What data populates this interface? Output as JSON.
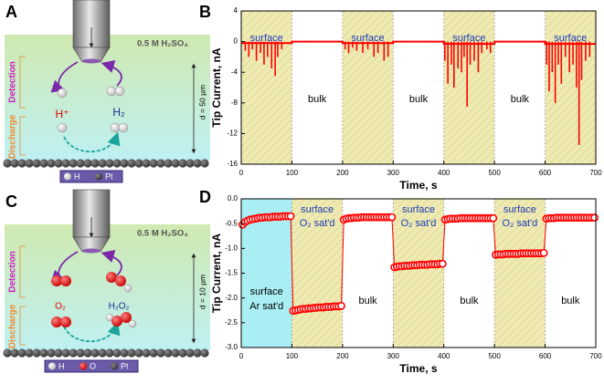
{
  "schematics": [
    {
      "label": "A",
      "solution": "0.5 M H₂SO₄",
      "zones": [
        "Detection",
        "Discharge"
      ],
      "species": [
        "H⁺",
        "H₂"
      ],
      "distance": "d = 50 µm",
      "legend": [
        "H",
        "Pt"
      ]
    },
    {
      "label": "C",
      "solution": "0.5 M H₂SO₄",
      "zones": [
        "Detection",
        "Discharge"
      ],
      "species": [
        "O₂",
        "H₂O₂"
      ],
      "distance": "d = 10 µm",
      "legend": [
        "H",
        "O",
        "Pt"
      ]
    }
  ],
  "chart_data": [
    {
      "type": "line",
      "label": "B",
      "xlabel": "Time, s",
      "ylabel": "Tip Current, nA",
      "xlim": [
        0,
        700
      ],
      "xticks": [
        0,
        100,
        200,
        300,
        400,
        500,
        600,
        700
      ],
      "ylim": [
        -16,
        4
      ],
      "yticks": [
        -16,
        -12,
        -8,
        -4,
        0,
        4
      ],
      "regions": [
        {
          "xlim": [
            0,
            100
          ],
          "fill": "#efeab2",
          "hatch": true,
          "labels": [
            "surface"
          ]
        },
        {
          "xlim": [
            100,
            200
          ],
          "labels": [
            "bulk"
          ]
        },
        {
          "xlim": [
            200,
            300
          ],
          "fill": "#efeab2",
          "hatch": true,
          "labels": [
            "surface"
          ]
        },
        {
          "xlim": [
            300,
            400
          ],
          "labels": [
            "bulk"
          ]
        },
        {
          "xlim": [
            400,
            500
          ],
          "fill": "#efeab2",
          "hatch": true,
          "labels": [
            "surface"
          ]
        },
        {
          "xlim": [
            500,
            600
          ],
          "labels": [
            "bulk"
          ]
        },
        {
          "xlim": [
            600,
            700
          ],
          "fill": "#efeab2",
          "hatch": true,
          "labels": [
            "surface"
          ]
        }
      ],
      "series": [
        {
          "style": "line",
          "color": "#ff0000",
          "x": [
            0,
            100,
            100,
            200,
            200,
            300,
            300,
            400,
            400,
            500,
            500,
            600,
            600,
            700
          ],
          "values": [
            -0.2,
            -0.2,
            0,
            0,
            -0.2,
            -0.2,
            0,
            0,
            -0.3,
            -0.3,
            0,
            0,
            -0.3,
            -0.3
          ]
        },
        {
          "style": "spike",
          "color": "#ff0000",
          "x": [
            8,
            15,
            22,
            30,
            38,
            45,
            52,
            60,
            67,
            72,
            80,
            205,
            212,
            220,
            228,
            240,
            250,
            262,
            270,
            282,
            290,
            402,
            408,
            415,
            420,
            428,
            435,
            440,
            446,
            452,
            460,
            468,
            475,
            485,
            492,
            603,
            608,
            614,
            620,
            626,
            632,
            640,
            648,
            655,
            662,
            667,
            672,
            680,
            688
          ],
          "values": [
            -1.2,
            -2,
            -1,
            -2.5,
            -1.5,
            -3,
            -2,
            -3.5,
            -4.5,
            -2,
            -1,
            -1,
            -1.5,
            -0.8,
            -1.2,
            -1.5,
            -1,
            -2,
            -1.5,
            -2.5,
            -2,
            -2.5,
            -5.5,
            -3,
            -6,
            -3.5,
            -4,
            -2,
            -8.5,
            -3,
            -2.5,
            -4,
            -1.5,
            -1,
            -1.5,
            -3,
            -6.5,
            -4,
            -8,
            -3,
            -5.5,
            -2,
            -4,
            -3,
            -6,
            -13.5,
            -5,
            -2.5,
            -2
          ]
        }
      ]
    },
    {
      "type": "line",
      "label": "D",
      "xlabel": "Time, s",
      "ylabel": "Tip Current, nA",
      "xlim": [
        0,
        700
      ],
      "xticks": [
        0,
        100,
        200,
        300,
        400,
        500,
        600,
        700
      ],
      "ylim": [
        -3,
        0
      ],
      "yticks": [
        {
          "value": -3,
          "label": "-3.0"
        },
        -2.5,
        {
          "value": -2,
          "label": "-2.0"
        },
        -1.5,
        {
          "value": -1,
          "label": "-1.0"
        },
        -0.5,
        {
          "value": 0,
          "label": "0.0"
        }
      ],
      "regions": [
        {
          "xlim": [
            0,
            100
          ],
          "fill": "#a8eef3",
          "labels": [
            "surface",
            "Ar sat'd"
          ]
        },
        {
          "xlim": [
            100,
            200
          ],
          "fill": "#efeab2",
          "hatch": true,
          "labels": [
            "surface",
            "O₂ sat'd"
          ]
        },
        {
          "xlim": [
            200,
            300
          ],
          "labels": [
            "bulk"
          ]
        },
        {
          "xlim": [
            300,
            400
          ],
          "fill": "#efeab2",
          "hatch": true,
          "labels": [
            "surface",
            "O₂ sat'd"
          ]
        },
        {
          "xlim": [
            400,
            500
          ],
          "labels": [
            "bulk"
          ]
        },
        {
          "xlim": [
            500,
            600
          ],
          "fill": "#efeab2",
          "hatch": true,
          "labels": [
            "surface",
            "O₂ sat'd"
          ]
        },
        {
          "xlim": [
            600,
            700
          ],
          "labels": [
            "bulk"
          ]
        }
      ],
      "series": [
        {
          "style": "marker",
          "color": "#ff0000",
          "x": [
            2.5,
            7.5,
            12.5,
            17.5,
            22.5,
            27.5,
            32.5,
            37.5,
            42.5,
            47.5,
            52.5,
            57.5,
            62.5,
            67.5,
            72.5,
            77.5,
            82.5,
            87.5,
            92.5,
            97.5,
            102.5,
            107.5,
            112.5,
            117.5,
            122.5,
            127.5,
            132.5,
            137.5,
            142.5,
            147.5,
            152.5,
            157.5,
            162.5,
            167.5,
            172.5,
            177.5,
            182.5,
            187.5,
            192.5,
            197.5,
            202.5,
            207.5,
            212.5,
            217.5,
            222.5,
            227.5,
            232.5,
            237.5,
            242.5,
            247.5,
            252.5,
            257.5,
            262.5,
            267.5,
            272.5,
            277.5,
            282.5,
            287.5,
            292.5,
            297.5,
            302.5,
            307.5,
            312.5,
            317.5,
            322.5,
            327.5,
            332.5,
            337.5,
            342.5,
            347.5,
            352.5,
            357.5,
            362.5,
            367.5,
            372.5,
            377.5,
            382.5,
            387.5,
            392.5,
            397.5,
            402.5,
            407.5,
            412.5,
            417.5,
            422.5,
            427.5,
            432.5,
            437.5,
            442.5,
            447.5,
            452.5,
            457.5,
            462.5,
            467.5,
            472.5,
            477.5,
            482.5,
            487.5,
            492.5,
            497.5,
            502.5,
            507.5,
            512.5,
            517.5,
            522.5,
            527.5,
            532.5,
            537.5,
            542.5,
            547.5,
            552.5,
            557.5,
            562.5,
            567.5,
            572.5,
            577.5,
            582.5,
            587.5,
            592.5,
            597.5,
            602.5,
            607.5,
            612.5,
            617.5,
            622.5,
            627.5,
            632.5,
            637.5,
            642.5,
            647.5,
            652.5,
            657.5,
            662.5,
            667.5,
            672.5,
            677.5,
            682.5,
            687.5,
            692.5,
            697.5
          ],
          "values": [
            -0.52,
            -0.47,
            -0.44,
            -0.42,
            -0.41,
            -0.4,
            -0.39,
            -0.38,
            -0.38,
            -0.37,
            -0.37,
            -0.37,
            -0.36,
            -0.36,
            -0.36,
            -0.36,
            -0.35,
            -0.35,
            -0.35,
            -0.35,
            -2.26,
            -2.25,
            -2.24,
            -2.23,
            -2.22,
            -2.22,
            -2.21,
            -2.21,
            -2.2,
            -2.2,
            -2.19,
            -2.19,
            -2.19,
            -2.18,
            -2.18,
            -2.18,
            -2.17,
            -2.17,
            -2.17,
            -2.16,
            -0.42,
            -0.4,
            -0.39,
            -0.39,
            -0.38,
            -0.38,
            -0.38,
            -0.37,
            -0.37,
            -0.37,
            -0.37,
            -0.37,
            -0.37,
            -0.37,
            -0.37,
            -0.37,
            -0.37,
            -0.37,
            -0.37,
            -0.37,
            -1.38,
            -1.37,
            -1.36,
            -1.36,
            -1.35,
            -1.35,
            -1.35,
            -1.34,
            -1.34,
            -1.34,
            -1.33,
            -1.33,
            -1.33,
            -1.33,
            -1.32,
            -1.32,
            -1.32,
            -1.32,
            -1.31,
            -1.31,
            -0.42,
            -0.41,
            -0.4,
            -0.4,
            -0.4,
            -0.4,
            -0.39,
            -0.39,
            -0.39,
            -0.39,
            -0.39,
            -0.39,
            -0.39,
            -0.39,
            -0.39,
            -0.39,
            -0.39,
            -0.39,
            -0.39,
            -0.39,
            -1.13,
            -1.12,
            -1.12,
            -1.12,
            -1.11,
            -1.11,
            -1.11,
            -1.11,
            -1.11,
            -1.11,
            -1.1,
            -1.1,
            -1.1,
            -1.1,
            -1.1,
            -1.1,
            -1.1,
            -1.1,
            -1.1,
            -1.09,
            -0.4,
            -0.39,
            -0.39,
            -0.39,
            -0.38,
            -0.38,
            -0.38,
            -0.38,
            -0.38,
            -0.38,
            -0.38,
            -0.38,
            -0.38,
            -0.38,
            -0.38,
            -0.38,
            -0.38,
            -0.38,
            -0.38,
            -0.38
          ]
        }
      ]
    }
  ]
}
